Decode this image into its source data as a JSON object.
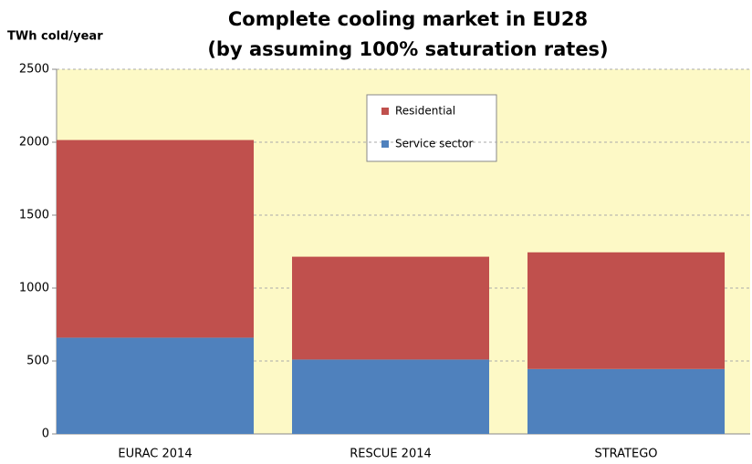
{
  "chart_data": {
    "type": "stacked-bar",
    "title": "Complete cooling market in EU28",
    "subtitle": "(by assuming 100% saturation rates)",
    "y_label": "TWh cold/year",
    "categories": [
      "EURAC 2014",
      "RESCUE 2014",
      "STRATEGO"
    ],
    "series": [
      {
        "name": "Service sector",
        "color": "#4f81bd",
        "values": [
          660,
          510,
          445
        ]
      },
      {
        "name": "Residential",
        "color": "#c0504d",
        "values": [
          1355,
          705,
          800
        ]
      }
    ],
    "ylim": [
      0,
      2500
    ],
    "yticks": [
      0,
      500,
      1000,
      1500,
      2000,
      2500
    ],
    "grid": true
  }
}
